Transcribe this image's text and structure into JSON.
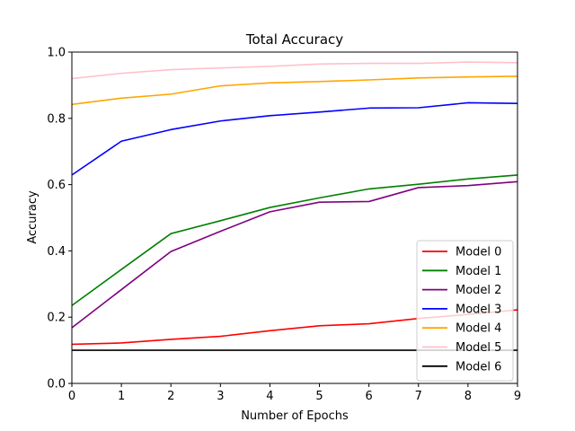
{
  "chart_data": {
    "type": "line",
    "title": "Total Accuracy",
    "xlabel": "Number of Epochs",
    "ylabel": "Accuracy",
    "xlim": [
      0,
      9
    ],
    "ylim": [
      0.0,
      1.0
    ],
    "x": [
      0,
      1,
      2,
      3,
      4,
      5,
      6,
      7,
      8,
      9
    ],
    "xticks": [
      "0",
      "1",
      "2",
      "3",
      "4",
      "5",
      "6",
      "7",
      "8",
      "9"
    ],
    "yticks": [
      "0.0",
      "0.2",
      "0.4",
      "0.6",
      "0.8",
      "1.0"
    ],
    "grid": false,
    "legend_position": "lower-right",
    "series": [
      {
        "name": "Model 0",
        "color": "#ff0000",
        "values": [
          0.118,
          0.122,
          0.133,
          0.142,
          0.159,
          0.174,
          0.18,
          0.196,
          0.208,
          0.222
        ]
      },
      {
        "name": "Model 1",
        "color": "#008000",
        "values": [
          0.235,
          0.344,
          0.452,
          0.491,
          0.531,
          0.56,
          0.587,
          0.601,
          0.617,
          0.629
        ]
      },
      {
        "name": "Model 2",
        "color": "#800080",
        "values": [
          0.168,
          0.283,
          0.398,
          0.459,
          0.518,
          0.547,
          0.549,
          0.591,
          0.597,
          0.609
        ]
      },
      {
        "name": "Model 3",
        "color": "#0000ff",
        "values": [
          0.629,
          0.731,
          0.766,
          0.792,
          0.808,
          0.819,
          0.831,
          0.832,
          0.847,
          0.845
        ]
      },
      {
        "name": "Model 4",
        "color": "#ffa500",
        "values": [
          0.842,
          0.861,
          0.873,
          0.898,
          0.907,
          0.911,
          0.916,
          0.922,
          0.925,
          0.927
        ]
      },
      {
        "name": "Model 5",
        "color": "#ffc0cb",
        "values": [
          0.92,
          0.936,
          0.947,
          0.952,
          0.957,
          0.964,
          0.966,
          0.966,
          0.97,
          0.968
        ]
      },
      {
        "name": "Model 6",
        "color": "#000000",
        "values": [
          0.1,
          0.1,
          0.1,
          0.1,
          0.1,
          0.1,
          0.1,
          0.1,
          0.1,
          0.1
        ]
      }
    ]
  }
}
